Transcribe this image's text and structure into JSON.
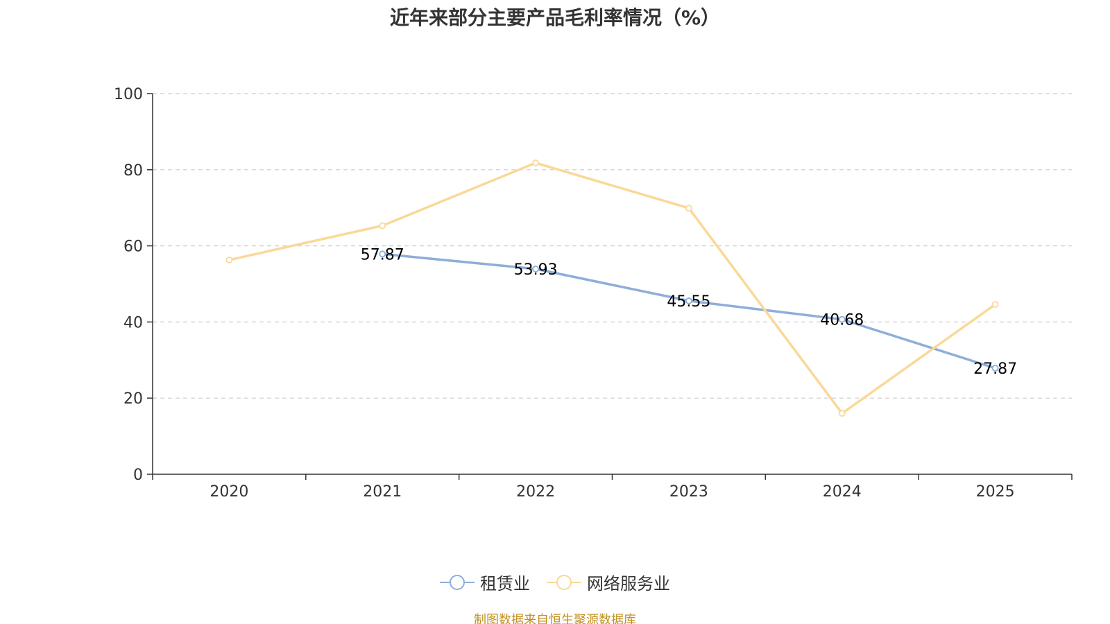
{
  "chart_data": {
    "type": "line",
    "title": "近年来部分主要产品毛利率情况（%）",
    "categories": [
      "2020",
      "2021",
      "2022",
      "2023",
      "2024",
      "2025"
    ],
    "ylim": [
      0,
      100
    ],
    "yticks": [
      0,
      20,
      40,
      60,
      80,
      100
    ],
    "grid": true,
    "legend_position": "bottom",
    "series": [
      {
        "name": "租赁业",
        "color": "#8eaed9",
        "values": [
          null,
          57.87,
          53.93,
          45.55,
          40.68,
          27.87
        ],
        "labels": [
          "",
          "57.87",
          "53.93",
          "45.55",
          "40.68",
          "27.87"
        ]
      },
      {
        "name": "网络服务业",
        "color": "#fad897",
        "values": [
          56.3,
          65.3,
          81.8,
          69.9,
          16.0,
          44.6
        ],
        "labels": [
          "",
          "",
          "",
          "",
          "",
          ""
        ]
      }
    ]
  },
  "footer": {
    "source": "制图数据来自恒生聚源数据库"
  }
}
